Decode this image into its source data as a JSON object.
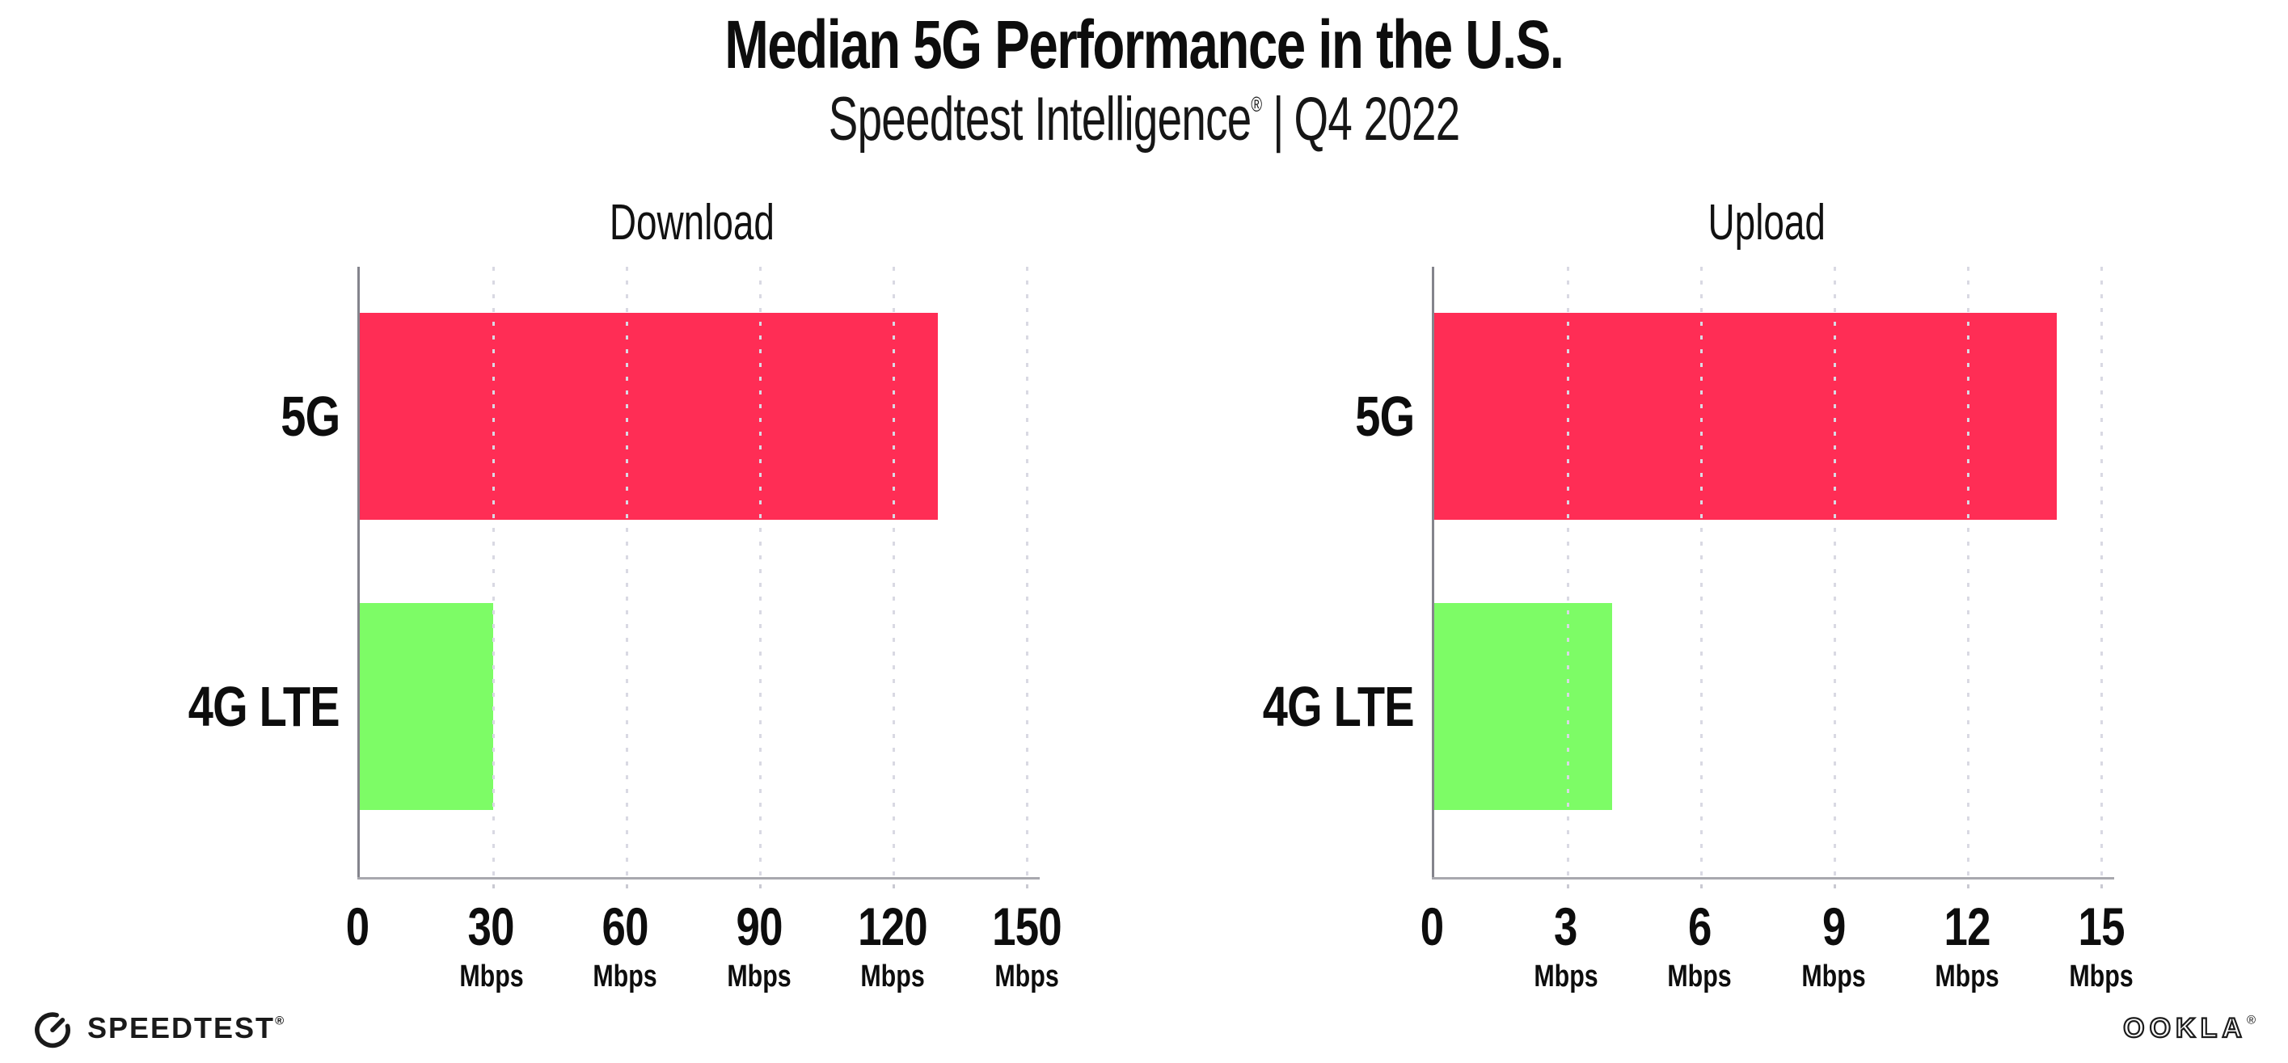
{
  "header": {
    "title": "Median 5G Performance in the U.S.",
    "subtitle_brand": "Speedtest Intelligence",
    "subtitle_reg": "®",
    "subtitle_separator": "|",
    "subtitle_period": "Q4 2022"
  },
  "chart_data": [
    {
      "type": "bar",
      "orientation": "horizontal",
      "title": "Download",
      "categories": [
        "5G",
        "4G LTE"
      ],
      "values": [
        130,
        30
      ],
      "unit": "Mbps",
      "xlabel": "",
      "ylabel": "",
      "xlim": [
        0,
        150
      ],
      "xticks": [
        0,
        30,
        60,
        90,
        120,
        150
      ],
      "tick_unit": "Mbps",
      "bar_colors": [
        "#ff2d55",
        "#7dfc66"
      ],
      "grid": "vertical-dotted",
      "legend": "none"
    },
    {
      "type": "bar",
      "orientation": "horizontal",
      "title": "Upload",
      "categories": [
        "5G",
        "4G LTE"
      ],
      "values": [
        14,
        4
      ],
      "unit": "Mbps",
      "xlabel": "",
      "ylabel": "",
      "xlim": [
        0,
        15
      ],
      "xticks": [
        0,
        3,
        6,
        9,
        12,
        15
      ],
      "tick_unit": "Mbps",
      "bar_colors": [
        "#ff2d55",
        "#7dfc66"
      ],
      "grid": "vertical-dotted",
      "legend": "none"
    }
  ],
  "colors": {
    "bar_5g": "#ff2d55",
    "bar_4g_lte": "#7dfc66",
    "y_axis": "#84848c",
    "x_axis": "#a8a8ae",
    "gridline": "#d9d9e3",
    "text": "#0d0d0d"
  },
  "footer": {
    "speedtest_label": "SPEEDTEST",
    "speedtest_mark": "®",
    "ookla_label": "OOKLA",
    "ookla_mark": "®"
  }
}
